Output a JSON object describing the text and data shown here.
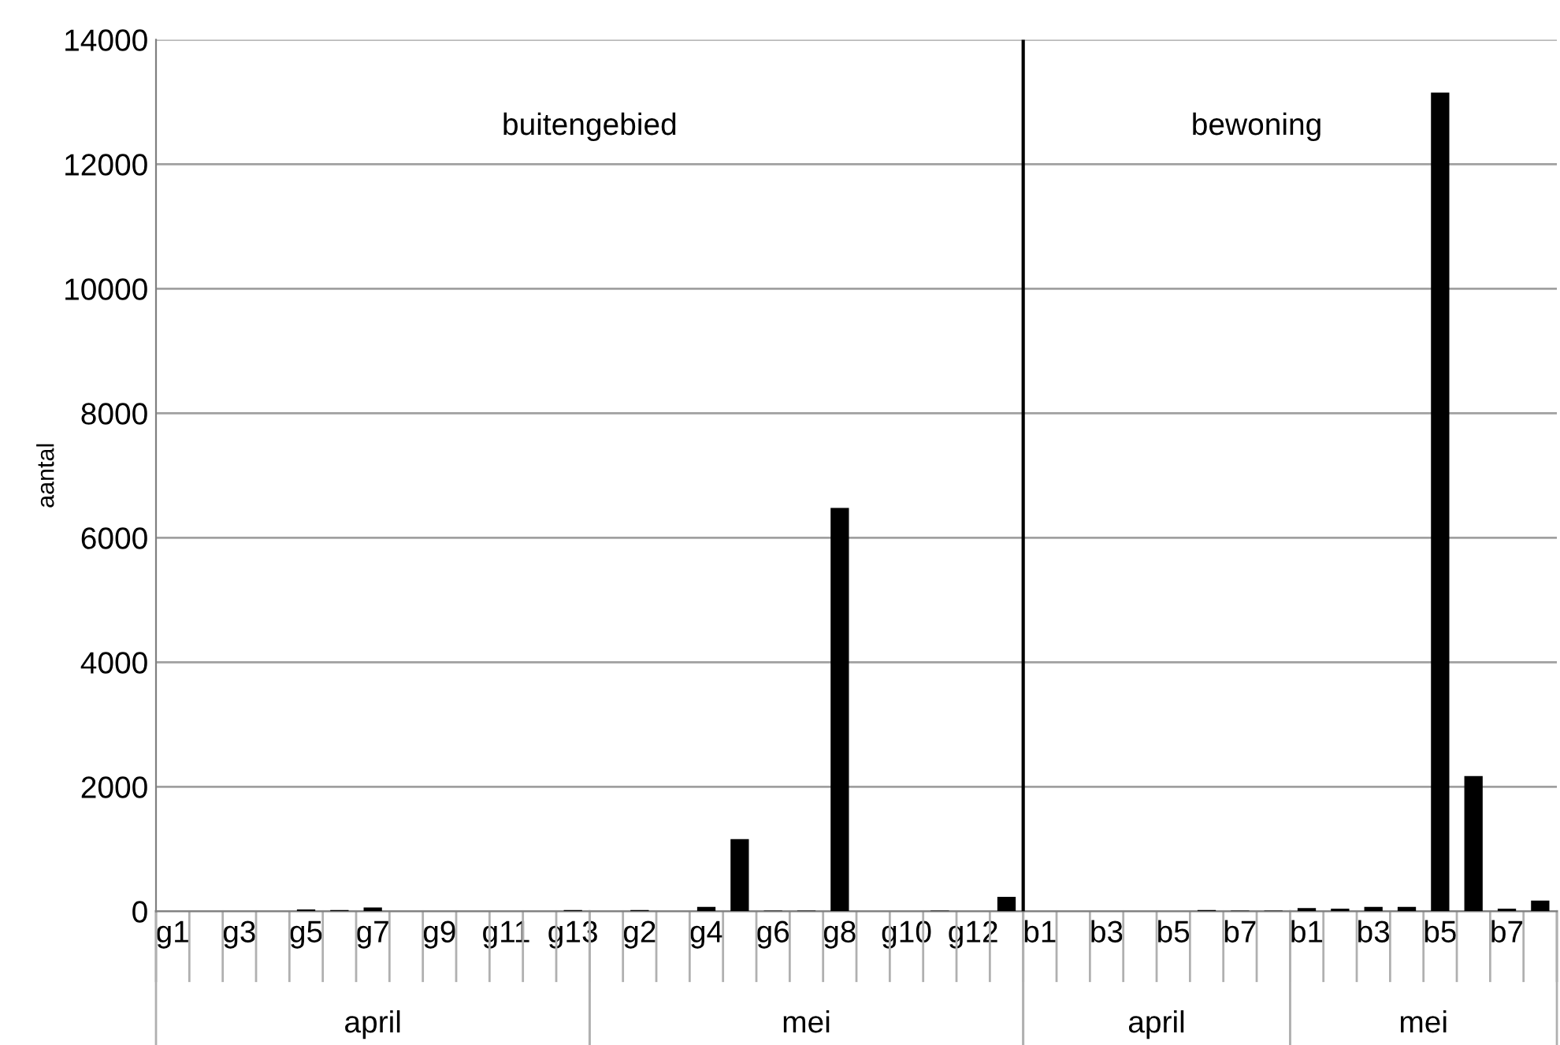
{
  "chart_data": {
    "type": "bar",
    "ylabel": "aantal",
    "categories": [
      "g1",
      null,
      "g3",
      null,
      "g5",
      null,
      "g7",
      null,
      "g9",
      null,
      "g11",
      null,
      "g13",
      null,
      "g2",
      null,
      "g4",
      null,
      "g6",
      null,
      "g8",
      null,
      "g10",
      null,
      "g12",
      null,
      "b1",
      null,
      "b3",
      null,
      "b5",
      null,
      "b7",
      null,
      "b1",
      null,
      "b3",
      null,
      "b5",
      null,
      "b7",
      null
    ],
    "values": [
      0,
      0,
      0,
      0,
      30,
      20,
      60,
      0,
      0,
      0,
      0,
      0,
      20,
      0,
      20,
      0,
      70,
      1160,
      10,
      10,
      6480,
      0,
      0,
      10,
      0,
      230,
      0,
      0,
      0,
      0,
      0,
      20,
      10,
      10,
      50,
      40,
      70,
      70,
      13150,
      2170,
      40,
      170
    ],
    "color": "#000000",
    "ylim": [
      0,
      14000
    ],
    "yticks": [
      0,
      2000,
      4000,
      6000,
      8000,
      10000,
      12000,
      14000
    ],
    "grid": "y",
    "annotations": [
      "buitengebied",
      "bewoning",
      "april",
      "mei",
      "april",
      "mei"
    ]
  }
}
